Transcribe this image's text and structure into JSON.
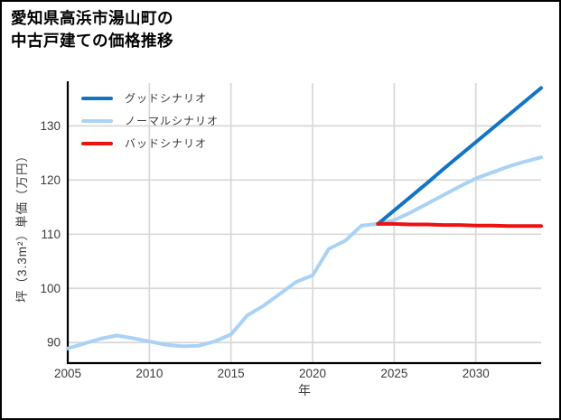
{
  "title": {
    "line1": "愛知県高浜市湯山町の",
    "line2": "中古戸建ての価格推移"
  },
  "chart_data": {
    "type": "line",
    "xlabel": "年",
    "ylabel": "坪（3.3m²）単価（万円）",
    "xlim": [
      2005,
      2034
    ],
    "ylim": [
      86.2,
      137.9
    ],
    "xticks": [
      2005,
      2010,
      2015,
      2020,
      2025,
      2030
    ],
    "yticks": [
      90,
      100,
      110,
      120,
      130
    ],
    "grid": true,
    "legend_position": "upper-left",
    "history": {
      "color": "#a9d2f5",
      "x": [
        2005,
        2006,
        2007,
        2008,
        2009,
        2010,
        2011,
        2012,
        2013,
        2014,
        2015,
        2016,
        2017,
        2018,
        2019,
        2020,
        2021,
        2022,
        2023,
        2024
      ],
      "values": [
        88.9,
        89.8,
        90.7,
        91.3,
        90.8,
        90.2,
        89.6,
        89.3,
        89.4,
        90.2,
        91.5,
        95.0,
        96.8,
        99.0,
        101.2,
        102.4,
        107.3,
        108.8,
        111.6,
        111.9
      ]
    },
    "series": [
      {
        "name": "グッドシナリオ",
        "color": "#1274c5",
        "x": [
          2024,
          2025,
          2026,
          2027,
          2028,
          2029,
          2030,
          2031,
          2032,
          2033,
          2034
        ],
        "values": [
          111.9,
          114.4,
          116.9,
          119.4,
          122.0,
          124.5,
          127.0,
          129.5,
          132.0,
          134.5,
          137.0
        ]
      },
      {
        "name": "ノーマルシナリオ",
        "color": "#a9d2f5",
        "x": [
          2024,
          2025,
          2026,
          2027,
          2028,
          2029,
          2030,
          2031,
          2032,
          2033,
          2034
        ],
        "values": [
          111.9,
          112.6,
          114.0,
          115.6,
          117.2,
          118.8,
          120.3,
          121.4,
          122.5,
          123.4,
          124.2
        ]
      },
      {
        "name": "バッドシナリオ",
        "color": "#ed1111",
        "x": [
          2024,
          2025,
          2026,
          2027,
          2028,
          2029,
          2030,
          2031,
          2032,
          2033,
          2034
        ],
        "values": [
          111.9,
          111.9,
          111.8,
          111.8,
          111.7,
          111.7,
          111.6,
          111.6,
          111.5,
          111.5,
          111.5
        ]
      }
    ],
    "colors": {
      "grid": "#d8d8d8",
      "axis": "#000000",
      "tick_label": "#3a3a3a",
      "background": "#ffffff",
      "border": "#000000"
    }
  }
}
